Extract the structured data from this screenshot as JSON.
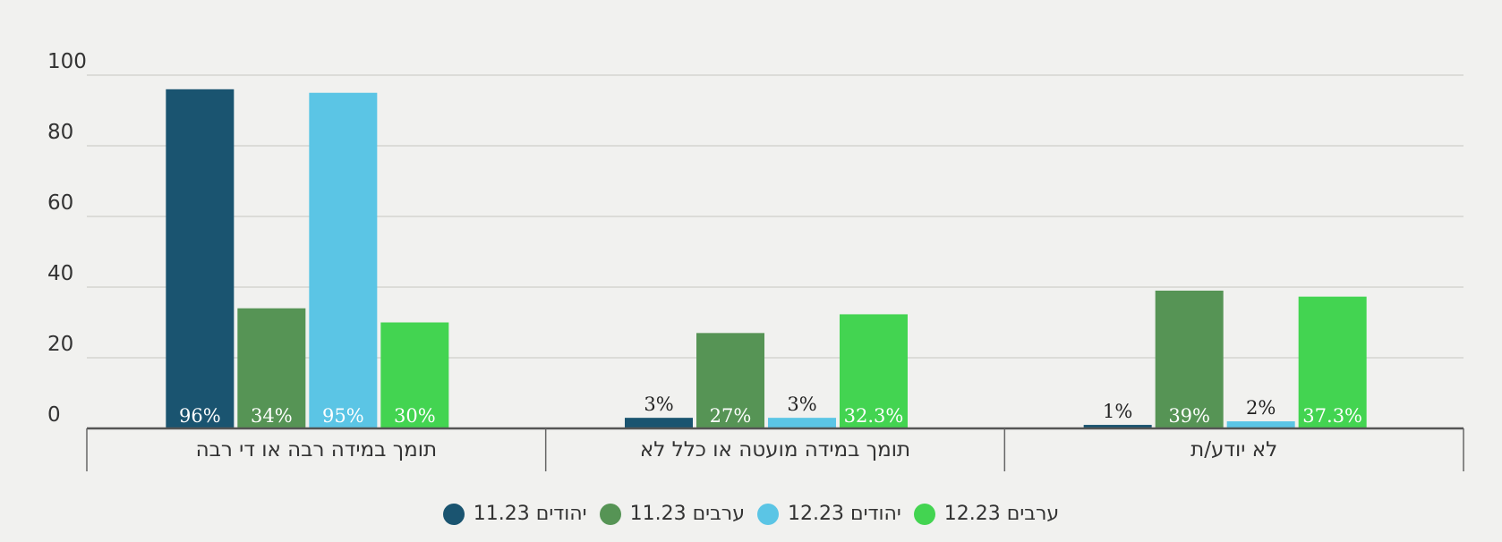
{
  "chart_data": {
    "type": "bar",
    "title": "",
    "xlabel": "",
    "ylabel": "",
    "ylim": [
      0,
      100
    ],
    "yticks": [
      0,
      20,
      40,
      60,
      80,
      100
    ],
    "grid": true,
    "legend_position": "bottom",
    "categories": [
      "תומך במידה רבה או די רבה",
      "תומך במידה מועטה או כלל לא",
      "לא יודע/ת"
    ],
    "series": [
      {
        "name": "יהודים 11.23",
        "color": "#1a5470",
        "values": [
          96,
          3,
          1
        ],
        "labels": [
          "96%",
          "3%",
          "1%"
        ]
      },
      {
        "name": "ערבים 11.23",
        "color": "#569455",
        "values": [
          34,
          27,
          39
        ],
        "labels": [
          "34%",
          "27%",
          "39%"
        ]
      },
      {
        "name": "יהודים 12.23",
        "color": "#5bc5e5",
        "values": [
          95,
          3,
          2
        ],
        "labels": [
          "95%",
          "3%",
          "2%"
        ]
      },
      {
        "name": "ערבים 12.23",
        "color": "#43d451",
        "values": [
          30,
          32.3,
          37.3
        ],
        "labels": [
          "30%",
          "32.3%",
          "37.3%"
        ]
      }
    ]
  }
}
